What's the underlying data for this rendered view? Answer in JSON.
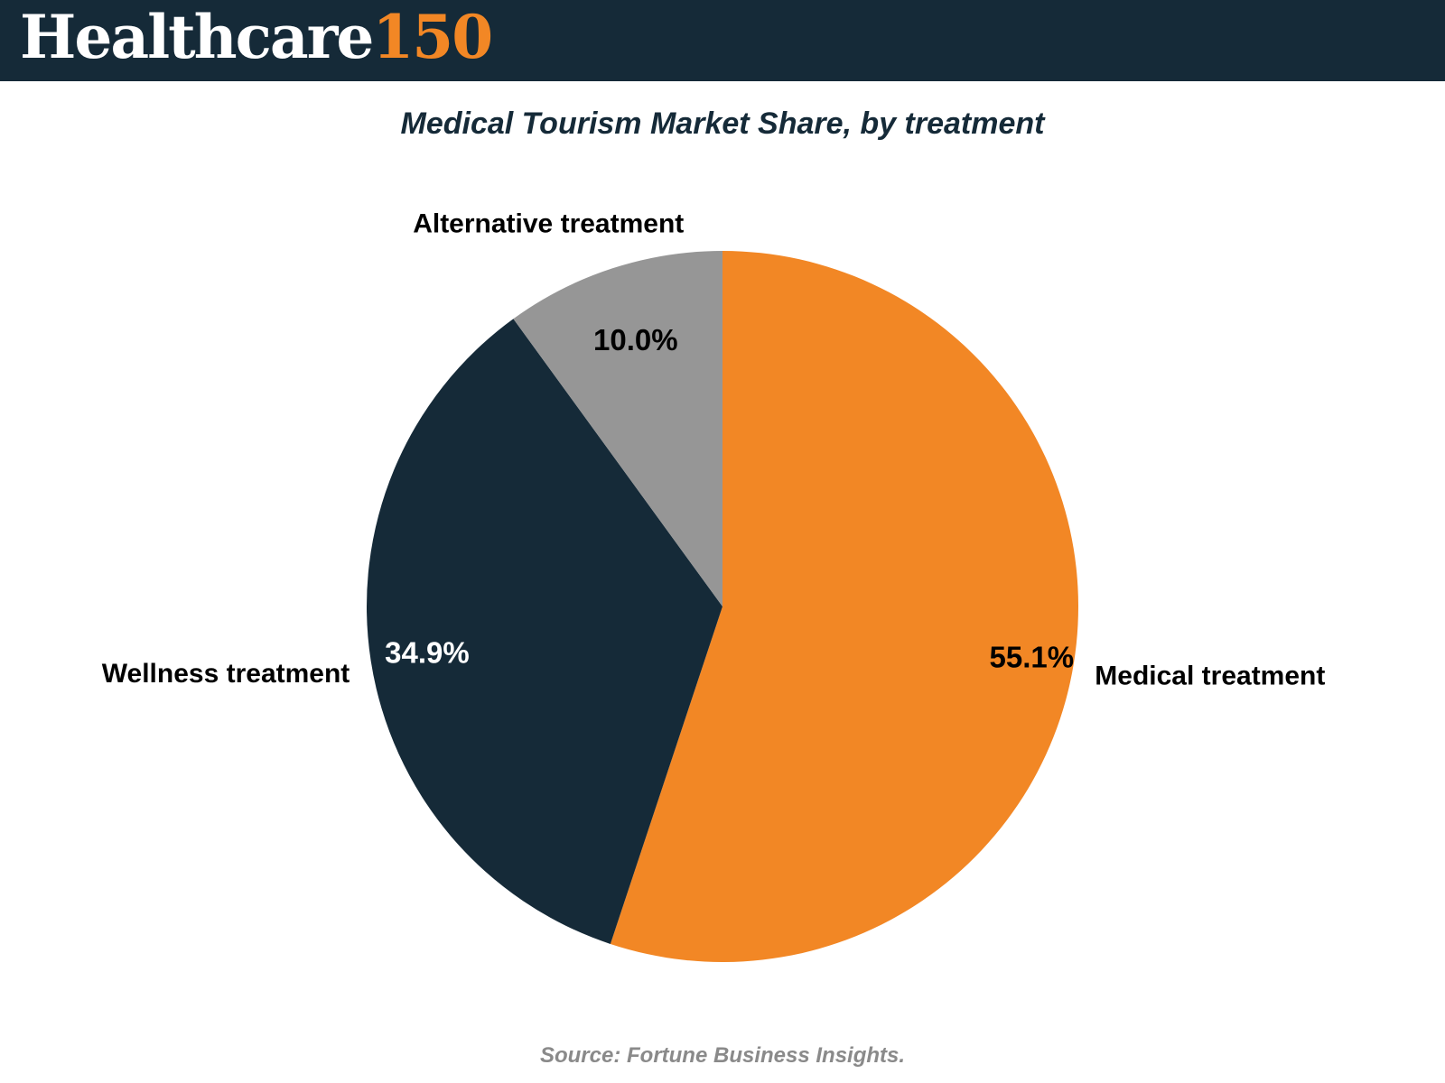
{
  "brand": {
    "word": "Healthcare",
    "number": "150",
    "colors": {
      "background": "#152a38",
      "word": "#ffffff",
      "number": "#f28725"
    }
  },
  "chart_data": {
    "type": "pie",
    "title": "Medical Tourism Market Share, by treatment",
    "slices": [
      {
        "label": "Medical treatment",
        "value": 55.1,
        "value_label": "55.1%",
        "color": "#f28725",
        "label_color": "#000000"
      },
      {
        "label": "Wellness treatment",
        "value": 34.9,
        "value_label": "34.9%",
        "color": "#152a38",
        "label_color": "#ffffff"
      },
      {
        "label": "Alternative treatment",
        "value": 10.0,
        "value_label": "10.0%",
        "color": "#969696",
        "label_color": "#000000"
      }
    ],
    "start": "12 o'clock",
    "direction": "clockwise",
    "legend": "none",
    "category_labels": "outside slices",
    "source": "Source: Fortune Business Insights."
  }
}
